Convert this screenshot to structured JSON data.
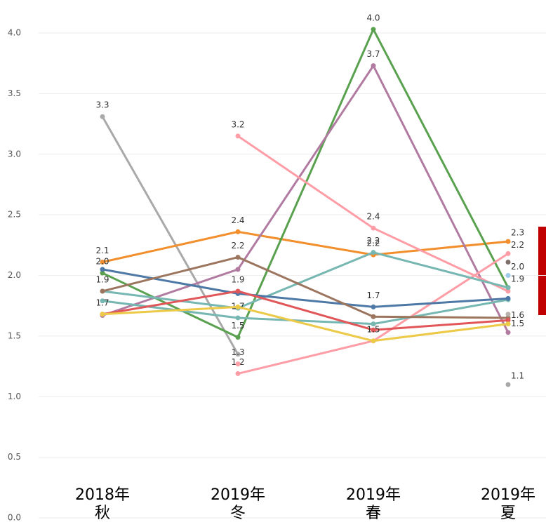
{
  "chart_data": {
    "type": "line",
    "categories": [
      [
        "2018年",
        "秋"
      ],
      [
        "2019年",
        "冬"
      ],
      [
        "2019年",
        "春"
      ],
      [
        "2019年",
        "夏"
      ]
    ],
    "ylim": [
      0,
      4
    ],
    "yticks": [
      {
        "value": 0,
        "label": "0.0"
      },
      {
        "value": 0.5,
        "label": "0.5"
      },
      {
        "value": 1,
        "label": "1.0"
      },
      {
        "value": 1.5,
        "label": "1.5"
      },
      {
        "value": 2,
        "label": "2.0"
      },
      {
        "value": 2.5,
        "label": "2.5"
      },
      {
        "value": 3,
        "label": "3.0"
      },
      {
        "value": 3.5,
        "label": "3.5"
      },
      {
        "value": 4,
        "label": "4.0"
      }
    ],
    "grid": true,
    "series": [
      {
        "color": "#a9a9a9",
        "values": [
          3.31,
          1.35,
          null,
          1.1
        ],
        "value_labels": [
          "3.3",
          null,
          null,
          "1.1"
        ]
      },
      {
        "color": "#f28e2b",
        "values": [
          2.11,
          2.36,
          2.17,
          2.28
        ],
        "value_labels": [
          "2.1",
          "2.4",
          "2.2",
          "2.3"
        ]
      },
      {
        "color": "#59a14f",
        "values": [
          2.02,
          1.49,
          4.03,
          1.9
        ],
        "value_labels": [
          "2.0",
          "1.5",
          "4.0",
          "1.9"
        ]
      },
      {
        "color": "#b07aa1",
        "values": [
          1.67,
          2.05,
          3.73,
          1.53
        ],
        "value_labels": [
          null,
          null,
          "3.7",
          "1.5"
        ]
      },
      {
        "color": "#ff9da7",
        "values": [
          null,
          3.15,
          2.39,
          1.87
        ],
        "value_labels": [
          null,
          "3.2",
          "2.4",
          null
        ]
      },
      {
        "color": "#ff9da7",
        "values": [
          null,
          1.19,
          1.46,
          2.18
        ],
        "value_labels": [
          null,
          "1.2",
          null,
          "2.2"
        ]
      },
      {
        "color": "#ff9da7",
        "values": [
          null,
          1.27,
          null,
          null
        ],
        "value_labels": [
          null,
          "1.3",
          null,
          null
        ]
      },
      {
        "color": "#76b7b2",
        "values": [
          1.87,
          1.73,
          2.19,
          1.9
        ],
        "value_labels": [
          "1.9",
          null,
          "2.2",
          null
        ]
      },
      {
        "color": "#76b7b2",
        "values": [
          1.79,
          1.65,
          1.6,
          1.8
        ],
        "value_labels": [
          null,
          "1.7",
          null,
          null
        ]
      },
      {
        "color": "#4e79a7",
        "values": [
          2.05,
          1.85,
          1.74,
          1.81
        ],
        "value_labels": [
          null,
          null,
          "1.7",
          null
        ]
      },
      {
        "color": "#9c755f",
        "values": [
          1.87,
          2.15,
          1.66,
          1.65
        ],
        "value_labels": [
          null,
          "2.2",
          null,
          null
        ]
      },
      {
        "color": "#e15759",
        "values": [
          1.68,
          1.87,
          1.55,
          1.63
        ],
        "value_labels": [
          null,
          "1.9",
          null,
          null
        ]
      },
      {
        "color": "#edc948",
        "values": [
          1.68,
          1.74,
          1.46,
          1.6
        ],
        "value_labels": [
          "1.7",
          null,
          "1.5",
          "1.6"
        ]
      },
      {
        "color": "#7f6f6a",
        "values": [
          null,
          null,
          null,
          2.11
        ],
        "value_labels": [
          null,
          null,
          null,
          null
        ]
      },
      {
        "color": "#9ecae9",
        "values": [
          null,
          null,
          null,
          2.0
        ],
        "value_labels": [
          null,
          null,
          null,
          "2.0"
        ]
      },
      {
        "color": "#bab0ac",
        "values": [
          null,
          null,
          null,
          1.68
        ],
        "value_labels": [
          null,
          null,
          null,
          null
        ]
      }
    ]
  }
}
